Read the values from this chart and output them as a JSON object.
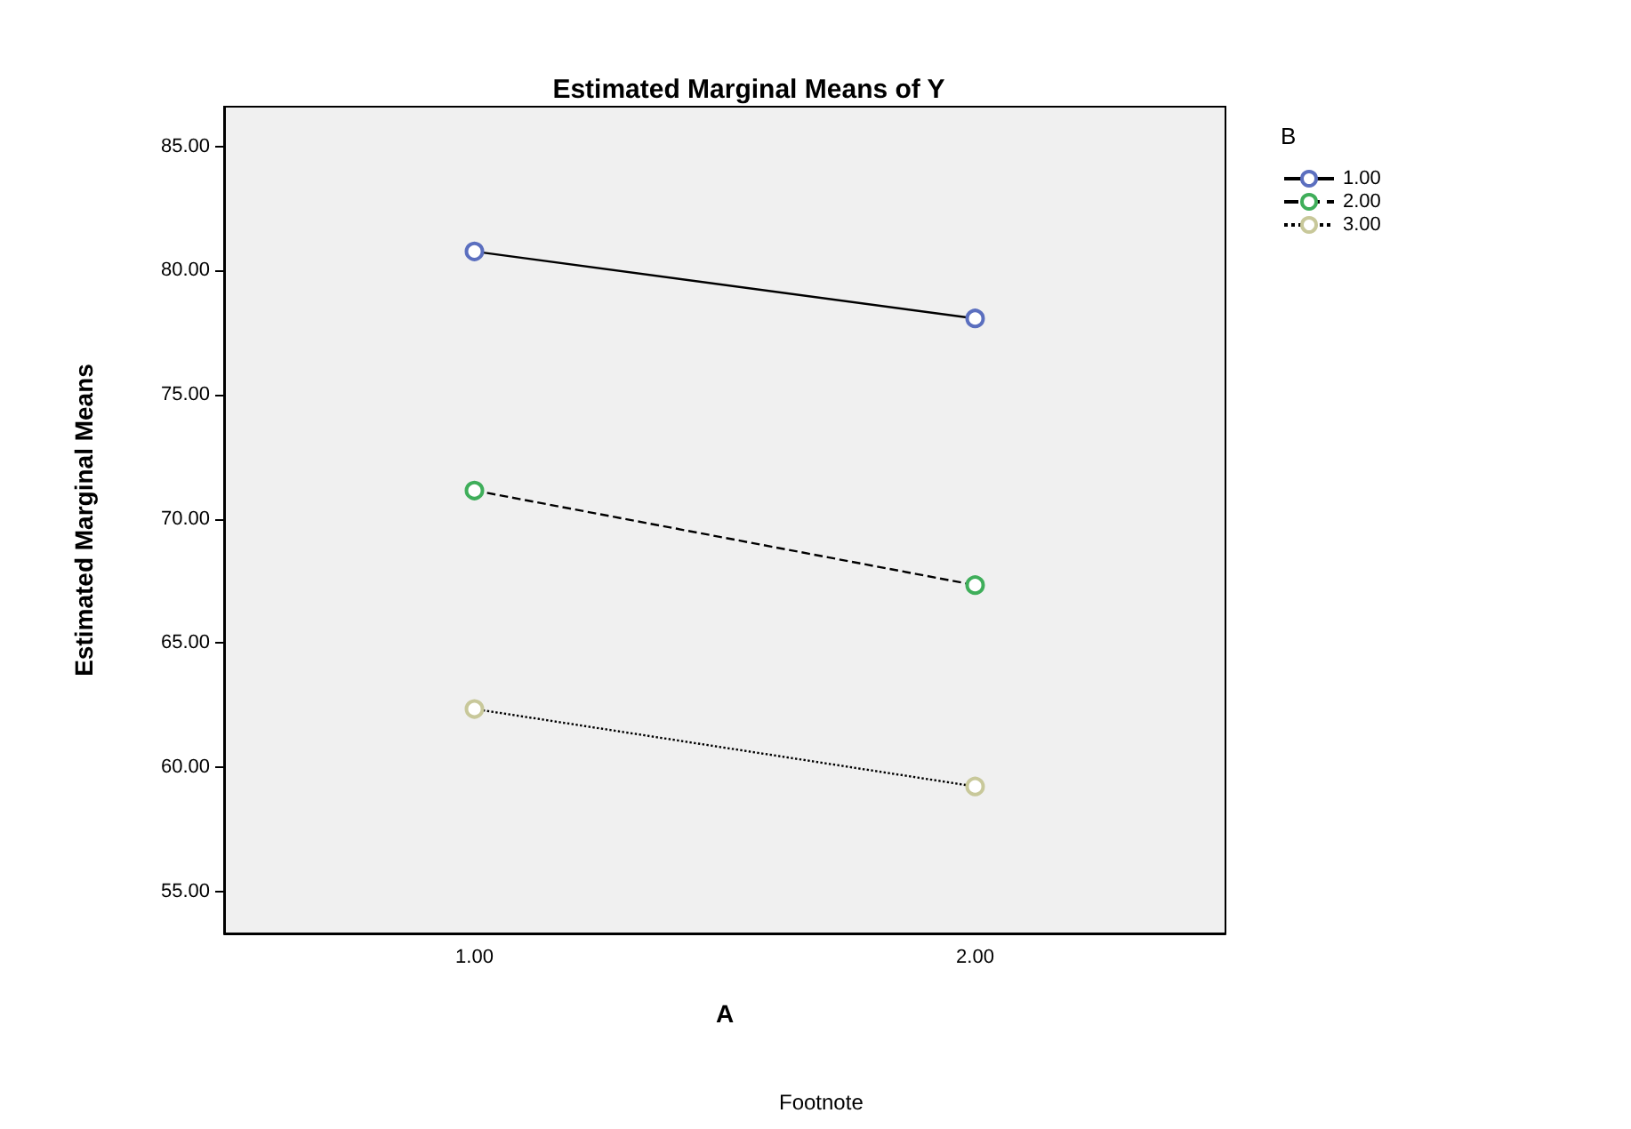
{
  "chart_data": {
    "type": "line",
    "title": "Estimated Marginal Means of Y",
    "xlabel": "A",
    "ylabel": "Estimated Marginal Means",
    "legend_title": "B",
    "annotations": [
      "Footnote"
    ],
    "categories": [
      "1.00",
      "2.00"
    ],
    "series": [
      {
        "name": "1.00",
        "color": "#5b6fbf",
        "values": [
          80.77,
          78.07
        ],
        "line_style": "solid"
      },
      {
        "name": "2.00",
        "color": "#3fae5a",
        "values": [
          71.14,
          67.33
        ],
        "line_style": "dashed"
      },
      {
        "name": "3.00",
        "color": "#c8c89a",
        "values": [
          62.34,
          59.22
        ],
        "line_style": "dotted"
      }
    ],
    "ylim": [
      53.3,
      86.6
    ],
    "yticks": [
      {
        "value": 55,
        "label": "55.00"
      },
      {
        "value": 60,
        "label": "60.00"
      },
      {
        "value": 65,
        "label": "65.00"
      },
      {
        "value": 70,
        "label": "70.00"
      },
      {
        "value": 75,
        "label": "75.00"
      },
      {
        "value": 80,
        "label": "80.00"
      },
      {
        "value": 85,
        "label": "85.00"
      }
    ],
    "grid": false,
    "legend": "top right",
    "marker": "circle"
  }
}
